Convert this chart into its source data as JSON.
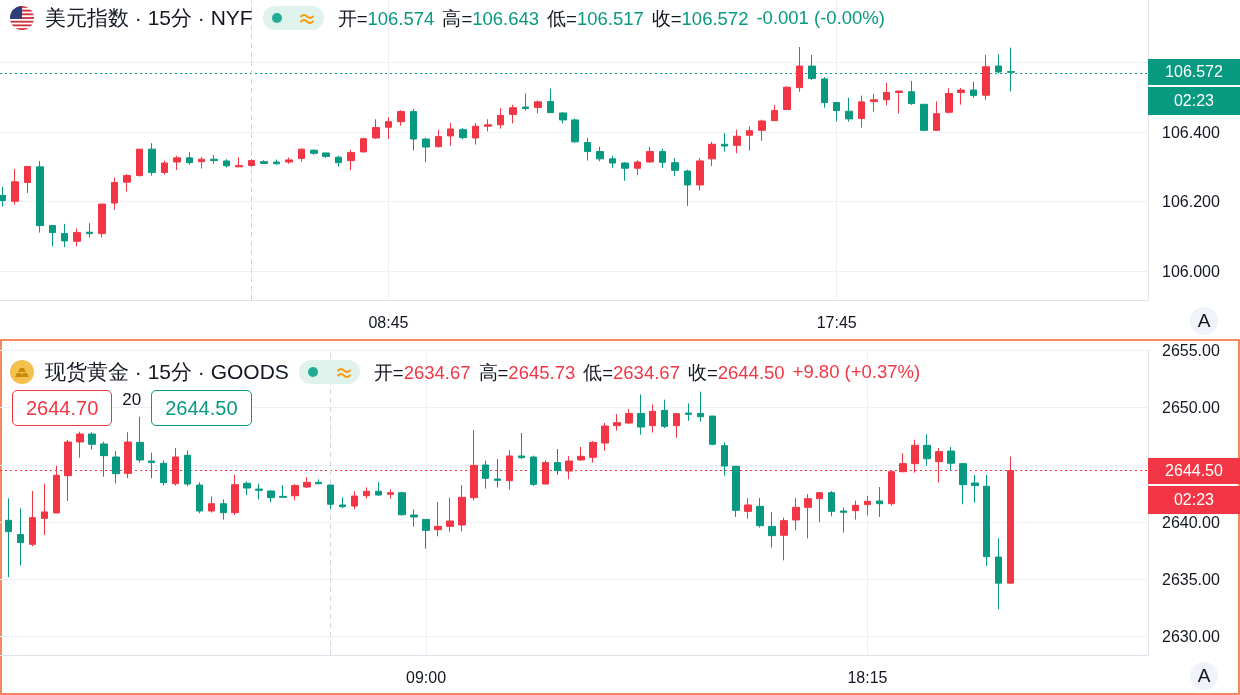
{
  "chart_data": [
    {
      "type": "candlestick",
      "title": "美元指数 · 15分 · NYF",
      "x": [
        1,
        1.25,
        1.5,
        1.75,
        2,
        2.25,
        2.5,
        2.75,
        3,
        3.25,
        3.5,
        3.75,
        4,
        4.25,
        4.5,
        4.75,
        5,
        5.25,
        5.5,
        5.75,
        6,
        6.25,
        6.5,
        6.75,
        7,
        7.25,
        7.5,
        7.75,
        8,
        8.25,
        8.5,
        8.75,
        9,
        9.25,
        9.5,
        9.75,
        10,
        10.25,
        10.5,
        10.75,
        11,
        11.25,
        11.5,
        11.75,
        12,
        12.25,
        12.5,
        12.75,
        13,
        13.25,
        13.5,
        13.75,
        14,
        14.25,
        14.5,
        14.75,
        15,
        15.25,
        15.5,
        15.75,
        16,
        16.25,
        16.5,
        16.75,
        17,
        17.25,
        17.5,
        17.75,
        18,
        18.25,
        18.5,
        18.75,
        19,
        19.25,
        19.5,
        19.75,
        20,
        20.25,
        20.5,
        20.75,
        21,
        21.25
      ],
      "ohlc": [
        [
          106.218,
          106.242,
          106.186,
          106.203
        ],
        [
          106.201,
          106.294,
          106.191,
          106.257
        ],
        [
          106.255,
          106.301,
          106.225,
          106.301
        ],
        [
          106.3,
          106.317,
          106.111,
          106.131
        ],
        [
          106.131,
          106.133,
          106.071,
          106.111
        ],
        [
          106.108,
          106.136,
          106.069,
          106.087
        ],
        [
          106.086,
          106.123,
          106.071,
          106.111
        ],
        [
          106.112,
          106.138,
          106.097,
          106.108
        ],
        [
          106.108,
          106.193,
          106.097,
          106.193
        ],
        [
          106.196,
          106.269,
          106.177,
          106.255
        ],
        [
          106.256,
          106.279,
          106.229,
          106.275
        ],
        [
          106.275,
          106.351,
          106.272,
          106.351
        ],
        [
          106.351,
          106.368,
          106.275,
          106.284
        ],
        [
          106.284,
          106.318,
          106.278,
          106.311
        ],
        [
          106.314,
          106.332,
          106.291,
          106.326
        ],
        [
          106.326,
          106.342,
          106.306,
          106.312
        ],
        [
          106.315,
          106.329,
          106.295,
          106.322
        ],
        [
          106.322,
          106.334,
          106.309,
          106.318
        ],
        [
          106.317,
          106.322,
          106.298,
          106.303
        ],
        [
          106.3,
          106.328,
          106.3,
          106.304
        ],
        [
          106.304,
          106.322,
          106.3,
          106.318
        ],
        [
          106.315,
          106.319,
          106.309,
          106.31
        ],
        [
          106.314,
          106.321,
          106.306,
          106.309
        ],
        [
          106.314,
          106.327,
          106.309,
          106.32
        ],
        [
          106.324,
          106.353,
          106.315,
          106.351
        ],
        [
          106.348,
          106.35,
          106.335,
          106.339
        ],
        [
          106.34,
          106.341,
          106.326,
          106.33
        ],
        [
          106.328,
          106.332,
          106.301,
          106.312
        ],
        [
          106.318,
          106.349,
          106.29,
          106.341
        ],
        [
          106.343,
          106.384,
          106.342,
          106.381
        ],
        [
          106.383,
          106.437,
          106.381,
          106.413
        ],
        [
          106.414,
          106.443,
          106.38,
          106.43
        ],
        [
          106.43,
          106.463,
          106.418,
          106.459
        ],
        [
          106.459,
          106.467,
          106.347,
          106.38
        ],
        [
          106.38,
          106.384,
          106.313,
          106.357
        ],
        [
          106.358,
          106.407,
          106.356,
          106.387
        ],
        [
          106.389,
          106.426,
          106.361,
          106.409
        ],
        [
          106.407,
          106.412,
          106.379,
          106.384
        ],
        [
          106.383,
          106.426,
          106.364,
          106.417
        ],
        [
          106.417,
          106.437,
          106.402,
          106.421
        ],
        [
          106.421,
          106.469,
          106.41,
          106.448
        ],
        [
          106.451,
          106.478,
          106.425,
          106.47
        ],
        [
          106.472,
          106.511,
          106.462,
          106.468
        ],
        [
          106.471,
          106.491,
          106.454,
          106.487
        ],
        [
          106.488,
          106.525,
          106.456,
          106.456
        ],
        [
          106.455,
          106.457,
          106.425,
          106.435
        ],
        [
          106.435,
          106.439,
          106.37,
          106.372
        ],
        [
          106.37,
          106.384,
          106.318,
          106.344
        ],
        [
          106.344,
          106.358,
          106.316,
          106.323
        ],
        [
          106.323,
          106.332,
          106.297,
          106.311
        ],
        [
          106.311,
          106.314,
          106.26,
          106.296
        ],
        [
          106.296,
          106.319,
          106.276,
          106.314
        ],
        [
          106.314,
          106.358,
          106.312,
          106.344
        ],
        [
          106.344,
          106.352,
          106.297,
          106.313
        ],
        [
          106.312,
          106.325,
          106.274,
          106.29
        ],
        [
          106.288,
          106.292,
          106.188,
          106.248
        ],
        [
          106.248,
          106.326,
          106.232,
          106.317
        ],
        [
          106.323,
          106.372,
          106.302,
          106.365
        ],
        [
          106.365,
          106.397,
          106.344,
          106.36
        ],
        [
          106.362,
          106.407,
          106.339,
          106.388
        ],
        [
          106.391,
          106.416,
          106.347,
          106.404
        ],
        [
          106.405,
          106.436,
          106.375,
          106.432
        ],
        [
          106.433,
          106.478,
          106.433,
          106.462
        ],
        [
          106.465,
          106.532,
          106.465,
          106.529
        ],
        [
          106.528,
          106.645,
          106.516,
          106.59
        ],
        [
          106.59,
          106.622,
          106.55,
          106.554
        ],
        [
          106.553,
          106.558,
          106.47,
          106.485
        ],
        [
          106.485,
          106.487,
          106.431,
          106.462
        ],
        [
          106.46,
          106.499,
          106.43,
          106.438
        ],
        [
          106.439,
          106.505,
          106.413,
          106.487
        ],
        [
          106.488,
          106.51,
          106.459,
          106.493
        ],
        [
          106.493,
          106.542,
          106.477,
          106.514
        ],
        [
          106.514,
          106.518,
          106.454,
          106.518
        ],
        [
          106.516,
          106.547,
          106.478,
          106.482
        ],
        [
          106.48,
          106.48,
          106.403,
          106.405
        ],
        [
          106.405,
          106.488,
          106.403,
          106.453
        ],
        [
          106.457,
          106.526,
          106.454,
          106.511
        ],
        [
          106.514,
          106.527,
          106.479,
          106.521
        ],
        [
          106.521,
          106.545,
          106.499,
          106.505
        ],
        [
          106.506,
          106.622,
          106.493,
          106.588
        ],
        [
          106.59,
          106.624,
          106.569,
          106.573
        ],
        [
          106.574,
          106.643,
          106.517,
          106.572
        ]
      ],
      "colors": [
        "#089981",
        "#f23645",
        "#f23645",
        "#089981",
        "#089981",
        "#089981",
        "#f23645",
        "#089981",
        "#f23645",
        "#f23645",
        "#f23645",
        "#f23645",
        "#089981",
        "#f23645",
        "#f23645",
        "#089981",
        "#f23645",
        "#089981",
        "#089981",
        "#f23645",
        "#f23645",
        "#089981",
        "#089981",
        "#f23645",
        "#f23645",
        "#089981",
        "#089981",
        "#089981",
        "#f23645",
        "#f23645",
        "#f23645",
        "#f23645",
        "#f23645",
        "#089981",
        "#089981",
        "#f23645",
        "#f23645",
        "#089981",
        "#f23645",
        "#f23645",
        "#f23645",
        "#f23645",
        "#089981",
        "#f23645",
        "#089981",
        "#089981",
        "#089981",
        "#089981",
        "#089981",
        "#089981",
        "#089981",
        "#f23645",
        "#f23645",
        "#089981",
        "#089981",
        "#089981",
        "#f23645",
        "#f23645",
        "#089981",
        "#f23645",
        "#f23645",
        "#f23645",
        "#f23645",
        "#f23645",
        "#f23645",
        "#089981",
        "#089981",
        "#089981",
        "#089981",
        "#f23645",
        "#f23645",
        "#f23645",
        "#f23645",
        "#089981",
        "#089981",
        "#f23645",
        "#f23645",
        "#f23645",
        "#089981",
        "#f23645",
        "#089981",
        "#089981"
      ],
      "xlim": [
        0.95,
        24.0
      ],
      "xticks": [
        {
          "value": 8.75,
          "label": "08:45"
        },
        {
          "value": 17.75,
          "label": "17:45"
        }
      ],
      "ylim": [
        105.917,
        106.78
      ],
      "yticks": [
        {
          "value": 106.0,
          "label": "106.000"
        },
        {
          "value": 106.2,
          "label": "106.200"
        },
        {
          "value": 106.4,
          "label": "106.400"
        },
        {
          "value": 106.6,
          "label": null
        }
      ],
      "grid": true,
      "ref_lines": [
        {
          "axis": "y",
          "value": 106.572,
          "label": "106.572",
          "color": "#089981",
          "line_style": "dotted"
        },
        {
          "axis": "x",
          "value": 6,
          "color": "#d1d4dc",
          "line_style": "dashed"
        }
      ],
      "annotations": [
        "开=106.574",
        "高=106.643",
        "低=106.517",
        "收=106.572",
        "-0.001 (-0.00%)",
        "02:23",
        "A"
      ]
    },
    {
      "type": "candlestick",
      "title": "现货黄金 · 15分 · GOODS",
      "x": [
        0.25,
        0.5,
        0.75,
        1,
        1.25,
        1.5,
        1.75,
        2,
        2.25,
        2.5,
        2.75,
        3,
        3.25,
        3.5,
        3.75,
        4,
        4.25,
        4.5,
        4.75,
        5,
        5.25,
        5.5,
        5.75,
        6,
        6.25,
        6.5,
        6.75,
        7,
        7.25,
        7.5,
        7.75,
        8,
        8.25,
        8.5,
        8.75,
        9,
        9.25,
        9.5,
        9.75,
        10,
        10.25,
        10.5,
        10.75,
        11,
        11.25,
        11.5,
        11.75,
        12,
        12.25,
        12.5,
        12.75,
        13,
        13.25,
        13.5,
        13.75,
        14,
        14.25,
        14.5,
        14.75,
        15,
        15.25,
        15.5,
        15.75,
        16,
        16.25,
        16.5,
        16.75,
        17,
        17.25,
        17.5,
        17.75,
        18,
        18.25,
        18.5,
        18.75,
        19,
        19.25,
        19.5,
        19.75,
        20,
        20.25,
        20.5,
        20.75,
        21,
        21.25
      ],
      "ohlc": [
        [
          2640.16,
          2642.08,
          2635.18,
          2639.17
        ],
        [
          2638.91,
          2641.21,
          2636.2,
          2638.21
        ],
        [
          2638.06,
          2642.72,
          2637.89,
          2640.39
        ],
        [
          2640.33,
          2643.36,
          2638.88,
          2640.89
        ],
        [
          2640.8,
          2644.93,
          2640.8,
          2644.09
        ],
        [
          2644.06,
          2647.18,
          2641.85,
          2647.0
        ],
        [
          2647.0,
          2647.9,
          2645.63,
          2647.7
        ],
        [
          2647.7,
          2647.85,
          2646.36,
          2646.8
        ],
        [
          2646.83,
          2647.03,
          2643.97,
          2645.81
        ],
        [
          2645.69,
          2646.21,
          2643.39,
          2644.23
        ],
        [
          2644.26,
          2647.85,
          2643.83,
          2647.0
        ],
        [
          2646.97,
          2649.21,
          2645.2,
          2645.43
        ],
        [
          2645.34,
          2646.07,
          2643.83,
          2645.2
        ],
        [
          2645.14,
          2645.4,
          2643.19,
          2643.45
        ],
        [
          2643.36,
          2646.48,
          2643.19,
          2645.69
        ],
        [
          2645.84,
          2646.27,
          2643.13,
          2643.33
        ],
        [
          2643.24,
          2643.48,
          2640.77,
          2640.97
        ],
        [
          2640.97,
          2642.25,
          2640.83,
          2641.61
        ],
        [
          2641.61,
          2641.99,
          2640.22,
          2640.83
        ],
        [
          2640.83,
          2644.12,
          2640.62,
          2643.27
        ],
        [
          2643.39,
          2643.56,
          2642.37,
          2642.98
        ],
        [
          2642.89,
          2643.36,
          2641.99,
          2642.78
        ],
        [
          2642.72,
          2642.78,
          2641.76,
          2642.14
        ],
        [
          2642.25,
          2643.24,
          2642.17,
          2642.17
        ],
        [
          2642.31,
          2643.33,
          2641.9,
          2643.19
        ],
        [
          2643.07,
          2643.94,
          2643.01,
          2643.48
        ],
        [
          2643.48,
          2643.74,
          2643.3,
          2643.36
        ],
        [
          2643.24,
          2643.27,
          2641.15,
          2641.56
        ],
        [
          2641.5,
          2642.17,
          2641.21,
          2641.35
        ],
        [
          2641.41,
          2642.69,
          2641.12,
          2642.28
        ],
        [
          2642.31,
          2643.04,
          2642.05,
          2642.69
        ],
        [
          2642.69,
          2643.51,
          2642.31,
          2642.37
        ],
        [
          2642.43,
          2642.87,
          2642.05,
          2642.57
        ],
        [
          2642.57,
          2642.66,
          2640.57,
          2640.65
        ],
        [
          2640.62,
          2641.12,
          2639.6,
          2640.45
        ],
        [
          2640.24,
          2640.24,
          2637.68,
          2639.28
        ],
        [
          2639.34,
          2641.76,
          2638.76,
          2639.63
        ],
        [
          2639.63,
          2642.14,
          2639.17,
          2640.1
        ],
        [
          2639.75,
          2643.24,
          2639.2,
          2642.17
        ],
        [
          2642.14,
          2648.05,
          2641.88,
          2644.96
        ],
        [
          2644.99,
          2645.37,
          2642.92,
          2643.83
        ],
        [
          2643.77,
          2645.52,
          2643.01,
          2643.65
        ],
        [
          2643.62,
          2646.3,
          2642.84,
          2645.78
        ],
        [
          2645.78,
          2647.79,
          2645.52,
          2645.63
        ],
        [
          2645.69,
          2645.81,
          2643.16,
          2643.3
        ],
        [
          2643.33,
          2645.4,
          2643.33,
          2645.2
        ],
        [
          2645.2,
          2646.39,
          2644.12,
          2644.5
        ],
        [
          2644.47,
          2645.78,
          2643.74,
          2645.34
        ],
        [
          2645.43,
          2646.56,
          2645.37,
          2645.75
        ],
        [
          2645.66,
          2647.09,
          2645.2,
          2646.97
        ],
        [
          2646.91,
          2648.66,
          2646.24,
          2648.4
        ],
        [
          2648.43,
          2649.45,
          2647.99,
          2648.69
        ],
        [
          2648.66,
          2649.88,
          2648.6,
          2649.5
        ],
        [
          2649.5,
          2651.16,
          2647.64,
          2648.31
        ],
        [
          2648.43,
          2650.29,
          2647.82,
          2649.68
        ],
        [
          2649.77,
          2650.7,
          2648.22,
          2648.37
        ],
        [
          2648.43,
          2649.48,
          2647.38,
          2649.48
        ],
        [
          2649.53,
          2650.38,
          2648.84,
          2649.42
        ],
        [
          2649.5,
          2651.4,
          2648.78,
          2649.21
        ],
        [
          2649.27,
          2649.27,
          2646.71,
          2646.8
        ],
        [
          2646.68,
          2646.97,
          2644.06,
          2644.9
        ],
        [
          2644.88,
          2644.88,
          2640.45,
          2641.03
        ],
        [
          2640.94,
          2642.08,
          2640.3,
          2641.5
        ],
        [
          2641.38,
          2642.11,
          2639.52,
          2639.69
        ],
        [
          2639.63,
          2640.89,
          2637.77,
          2638.82
        ],
        [
          2638.85,
          2640.39,
          2636.66,
          2640.13
        ],
        [
          2640.19,
          2642.11,
          2639.28,
          2641.29
        ],
        [
          2641.29,
          2642.46,
          2638.58,
          2642.05
        ],
        [
          2642.05,
          2642.63,
          2639.98,
          2642.57
        ],
        [
          2642.57,
          2642.72,
          2640.51,
          2640.94
        ],
        [
          2640.97,
          2641.29,
          2639.08,
          2640.86
        ],
        [
          2641.0,
          2641.88,
          2640.22,
          2641.47
        ],
        [
          2641.53,
          2642.28,
          2640.59,
          2641.82
        ],
        [
          2641.85,
          2643.07,
          2640.45,
          2641.61
        ],
        [
          2641.61,
          2644.47,
          2641.44,
          2644.41
        ],
        [
          2644.41,
          2646.01,
          2644.35,
          2645.11
        ],
        [
          2645.11,
          2647.2,
          2644.32,
          2646.71
        ],
        [
          2646.71,
          2647.67,
          2644.93,
          2645.54
        ],
        [
          2645.28,
          2646.48,
          2643.45,
          2646.16
        ],
        [
          2646.21,
          2646.56,
          2644.55,
          2645.14
        ],
        [
          2645.11,
          2645.17,
          2641.56,
          2643.27
        ],
        [
          2643.42,
          2644.12,
          2641.7,
          2643.19
        ],
        [
          2643.13,
          2644.12,
          2636.17,
          2636.98
        ],
        [
          2636.95,
          2638.58,
          2632.38,
          2634.67
        ],
        [
          2634.67,
          2645.73,
          2634.67,
          2644.5
        ]
      ],
      "colors": [
        "#089981",
        "#089981",
        "#f23645",
        "#f23645",
        "#f23645",
        "#f23645",
        "#f23645",
        "#089981",
        "#089981",
        "#089981",
        "#f23645",
        "#089981",
        "#089981",
        "#089981",
        "#f23645",
        "#089981",
        "#089981",
        "#f23645",
        "#089981",
        "#f23645",
        "#089981",
        "#089981",
        "#089981",
        "#089981",
        "#f23645",
        "#f23645",
        "#089981",
        "#089981",
        "#089981",
        "#f23645",
        "#f23645",
        "#089981",
        "#f23645",
        "#089981",
        "#089981",
        "#089981",
        "#f23645",
        "#f23645",
        "#f23645",
        "#f23645",
        "#089981",
        "#089981",
        "#f23645",
        "#089981",
        "#089981",
        "#f23645",
        "#089981",
        "#f23645",
        "#f23645",
        "#f23645",
        "#f23645",
        "#f23645",
        "#f23645",
        "#089981",
        "#f23645",
        "#089981",
        "#f23645",
        "#089981",
        "#089981",
        "#089981",
        "#089981",
        "#089981",
        "#f23645",
        "#089981",
        "#089981",
        "#f23645",
        "#f23645",
        "#f23645",
        "#f23645",
        "#089981",
        "#089981",
        "#f23645",
        "#f23645",
        "#089981",
        "#f23645",
        "#f23645",
        "#f23645",
        "#089981",
        "#f23645",
        "#089981",
        "#089981",
        "#089981",
        "#089981",
        "#089981",
        "#f23645"
      ],
      "xlim": [
        0.07,
        24.13
      ],
      "xticks": [
        {
          "value": 9,
          "label": "09:00"
        },
        {
          "value": 18.25,
          "label": "18:15"
        }
      ],
      "ylim": [
        2628.39,
        2655.04
      ],
      "yticks": [
        {
          "value": 2630,
          "label": "2630.00"
        },
        {
          "value": 2635,
          "label": "2635.00"
        },
        {
          "value": 2640,
          "label": "2640.00"
        },
        {
          "value": 2645,
          "label": null
        },
        {
          "value": 2650,
          "label": "2650.00"
        },
        {
          "value": 2655,
          "label": "2655.00"
        }
      ],
      "grid": true,
      "ref_lines": [
        {
          "axis": "y",
          "value": 2644.5,
          "label": "2644.50",
          "color": "#f23645",
          "line_style": "dotted"
        },
        {
          "axis": "x",
          "value": 7,
          "color": "#d1d4dc",
          "line_style": "dashed"
        }
      ],
      "annotations": [
        "开=2634.67",
        "高=2645.73",
        "低=2634.67",
        "收=2644.50",
        "+9.80 (+0.37%)",
        "02:23",
        "2644.70",
        "20",
        "2644.50",
        "A"
      ]
    }
  ]
}
